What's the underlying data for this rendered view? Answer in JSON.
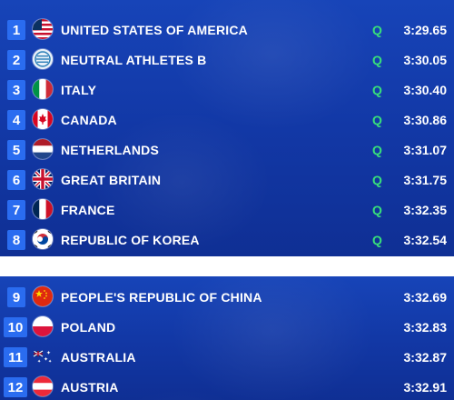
{
  "results_top": [
    {
      "rank": "1",
      "country": "UNITED STATES OF AMERICA",
      "q": "Q",
      "time": "3:29.65",
      "flag": "usa-flag-icon"
    },
    {
      "rank": "2",
      "country": "NEUTRAL ATHLETES B",
      "q": "Q",
      "time": "3:30.05",
      "flag": "neutral-athletes-flag-icon"
    },
    {
      "rank": "3",
      "country": "ITALY",
      "q": "Q",
      "time": "3:30.40",
      "flag": "italy-flag-icon"
    },
    {
      "rank": "4",
      "country": "CANADA",
      "q": "Q",
      "time": "3:30.86",
      "flag": "canada-flag-icon"
    },
    {
      "rank": "5",
      "country": "NETHERLANDS",
      "q": "Q",
      "time": "3:31.07",
      "flag": "netherlands-flag-icon"
    },
    {
      "rank": "6",
      "country": "GREAT BRITAIN",
      "q": "Q",
      "time": "3:31.75",
      "flag": "great-britain-flag-icon"
    },
    {
      "rank": "7",
      "country": "FRANCE",
      "q": "Q",
      "time": "3:32.35",
      "flag": "france-flag-icon"
    },
    {
      "rank": "8",
      "country": "REPUBLIC OF KOREA",
      "q": "Q",
      "time": "3:32.54",
      "flag": "korea-flag-icon"
    }
  ],
  "results_bottom": [
    {
      "rank": "9",
      "country": "PEOPLE'S REPUBLIC OF CHINA",
      "time": "3:32.69",
      "flag": "china-flag-icon"
    },
    {
      "rank": "10",
      "country": "POLAND",
      "time": "3:32.83",
      "flag": "poland-flag-icon"
    },
    {
      "rank": "11",
      "country": "AUSTRALIA",
      "time": "3:32.87",
      "flag": "australia-flag-icon"
    },
    {
      "rank": "12",
      "country": "AUSTRIA",
      "time": "3:32.91",
      "flag": "austria-flag-icon"
    }
  ],
  "colors": {
    "panel": "#1238a6",
    "rank_badge": "#2a6cf0",
    "qualified": "#38e07a",
    "text": "#ffffff"
  }
}
